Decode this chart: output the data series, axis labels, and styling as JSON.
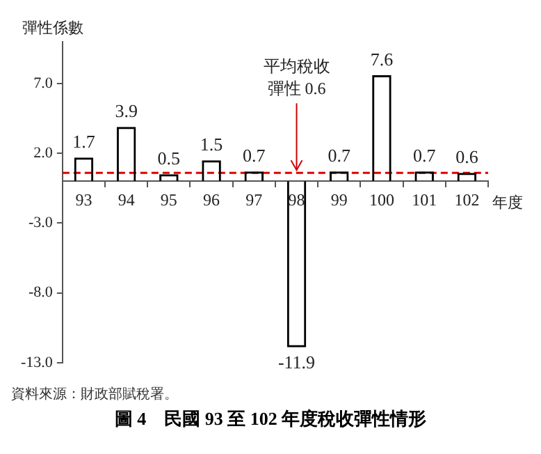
{
  "chart_data": {
    "type": "bar",
    "title": "圖 4　民國 93 至 102 年度稅收彈性情形",
    "xlabel": "年度",
    "ylabel": "彈性係數",
    "categories": [
      "93",
      "94",
      "95",
      "96",
      "97",
      "98",
      "99",
      "100",
      "101",
      "102"
    ],
    "values": [
      1.7,
      3.9,
      0.5,
      1.5,
      0.7,
      -11.9,
      0.7,
      7.6,
      0.7,
      0.6
    ],
    "color": "#000000",
    "ylim": [
      -13,
      10
    ],
    "yticks": [
      {
        "value": 7,
        "label": "7.0"
      },
      {
        "value": 2,
        "label": "2.0"
      },
      {
        "value": -3,
        "label": "-3.0"
      },
      {
        "value": -8,
        "label": "-8.0"
      },
      {
        "value": -13,
        "label": "-13.0"
      }
    ],
    "grid": false,
    "legend": false,
    "data_labels": true,
    "ref_lines": [
      {
        "axis": "y",
        "value": 0.6,
        "color": "#e00000",
        "line_style": "dashed"
      }
    ],
    "annotations": [
      {
        "text": "平均稅收彈性 0.6",
        "x": "98",
        "y": 0.6
      },
      "資料來源：財政部賦稅署。"
    ]
  }
}
